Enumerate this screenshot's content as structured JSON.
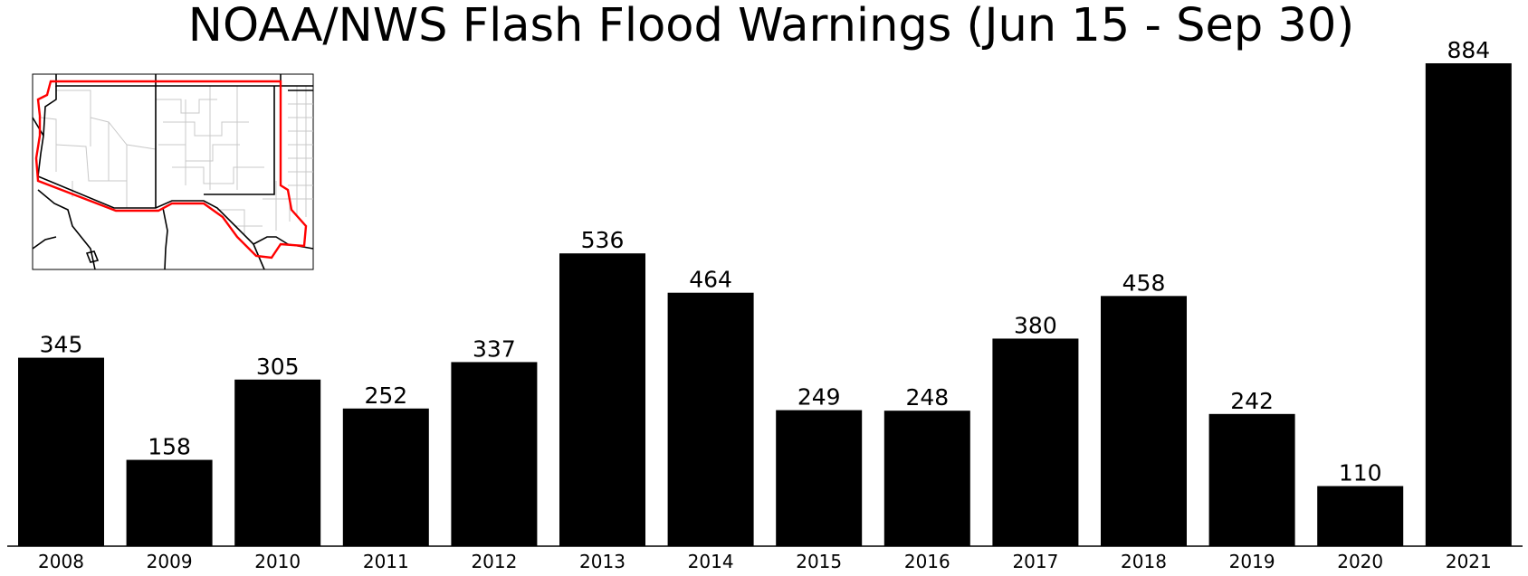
{
  "chart_data": {
    "type": "bar",
    "title": "NOAA/NWS Flash Flood Warnings (Jun 15 - Sep 30)",
    "xlabel": "",
    "ylabel": "",
    "categories": [
      "2008",
      "2009",
      "2010",
      "2011",
      "2012",
      "2013",
      "2014",
      "2015",
      "2016",
      "2017",
      "2018",
      "2019",
      "2020",
      "2021"
    ],
    "values": [
      345,
      158,
      305,
      252,
      337,
      536,
      464,
      249,
      248,
      380,
      458,
      242,
      110,
      884
    ],
    "ylim": [
      0,
      884
    ],
    "grid": false,
    "bar_color": "#000000",
    "data_labels": true,
    "inset_map": {
      "content": "map of Arizona and New Mexico with county boundaries, outlined in red",
      "highlight_color": "#ff0000"
    }
  }
}
